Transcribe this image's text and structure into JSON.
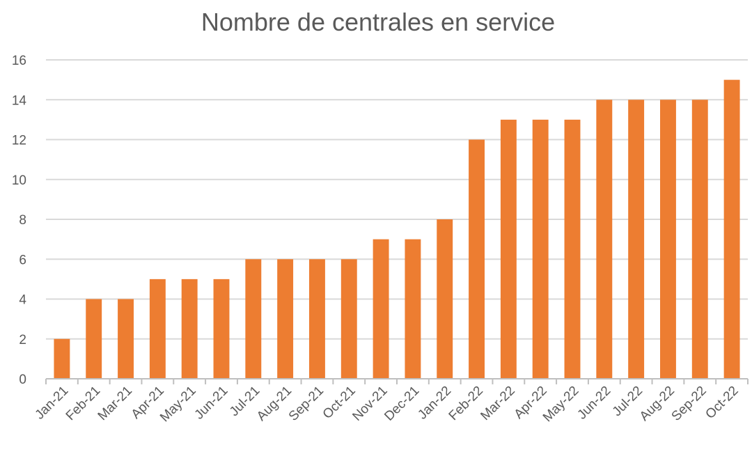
{
  "chart_data": {
    "type": "bar",
    "title": "Nombre de centrales en service",
    "xlabel": "",
    "ylabel": "",
    "categories": [
      "Jan-21",
      "Feb-21",
      "Mar-21",
      "Apr-21",
      "May-21",
      "Jun-21",
      "Jul-21",
      "Aug-21",
      "Sep-21",
      "Oct-21",
      "Nov-21",
      "Dec-21",
      "Jan-22",
      "Feb-22",
      "Mar-22",
      "Apr-22",
      "May-22",
      "Jun-22",
      "Jul-22",
      "Aug-22",
      "Sep-22",
      "Oct-22"
    ],
    "values": [
      2,
      4,
      4,
      5,
      5,
      5,
      6,
      6,
      6,
      6,
      7,
      7,
      8,
      12,
      13,
      13,
      13,
      14,
      14,
      14,
      14,
      15
    ],
    "ylim": [
      0,
      16
    ],
    "yticks": [
      "0",
      "2",
      "4",
      "6",
      "8",
      "10",
      "12",
      "14",
      "16"
    ],
    "grid": true,
    "legend": "none",
    "colors": {
      "bar": "#ED7D31",
      "grid": "#D9D9D9",
      "text": "#595959",
      "axis": "#BFBFBF"
    }
  }
}
